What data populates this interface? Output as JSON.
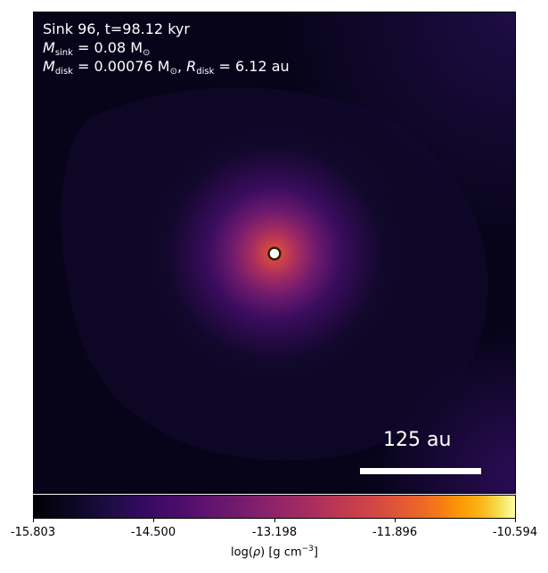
{
  "annotation": {
    "line1": "Sink 96, t=98.12 kyr",
    "m_sink_symbol": "M",
    "m_sink_sub": "sink",
    "m_sink_value": " = 0.08 M",
    "m_sink_sun": "⊙",
    "m_disk_symbol": "M",
    "m_disk_sub": "disk",
    "m_disk_value": " = 0.00076 M",
    "m_disk_sun": "⊙",
    "m_disk_sep": ", ",
    "r_disk_symbol": "R",
    "r_disk_sub": "disk",
    "r_disk_value": " = 6.12 au"
  },
  "scale_bar": {
    "label": "125 au",
    "length_au": 125
  },
  "colorbar": {
    "label_prefix": "log(",
    "label_symbol": "ρ",
    "label_suffix": ") [g cm",
    "label_exp": "−3",
    "label_close": "]",
    "colormap": "inferno",
    "min": -15.803,
    "max": -10.594,
    "ticks": [
      "-15.803",
      "-14.500",
      "-13.198",
      "-11.896",
      "-10.594"
    ]
  },
  "chart_data": {
    "type": "heatmap",
    "quantity": "log(ρ) [g cm^-3]",
    "colormap": "inferno",
    "value_range": [
      -15.803,
      -10.594
    ],
    "axes_visible": false,
    "sink": {
      "id": 96,
      "time_kyr": 98.12,
      "mass_msun": 0.08,
      "disk_mass_msun": 0.00076,
      "disk_radius_au": 6.12
    },
    "peak_value": -11.9,
    "background_value": -15.6,
    "scale_bar_au": 125,
    "colors": {
      "background": "#060312",
      "halo": "#2a0b52",
      "inner": "#a52c60",
      "core": "#ed6925",
      "sink_marker": "#ffffff",
      "sink_ring": "#3b1a00"
    }
  }
}
